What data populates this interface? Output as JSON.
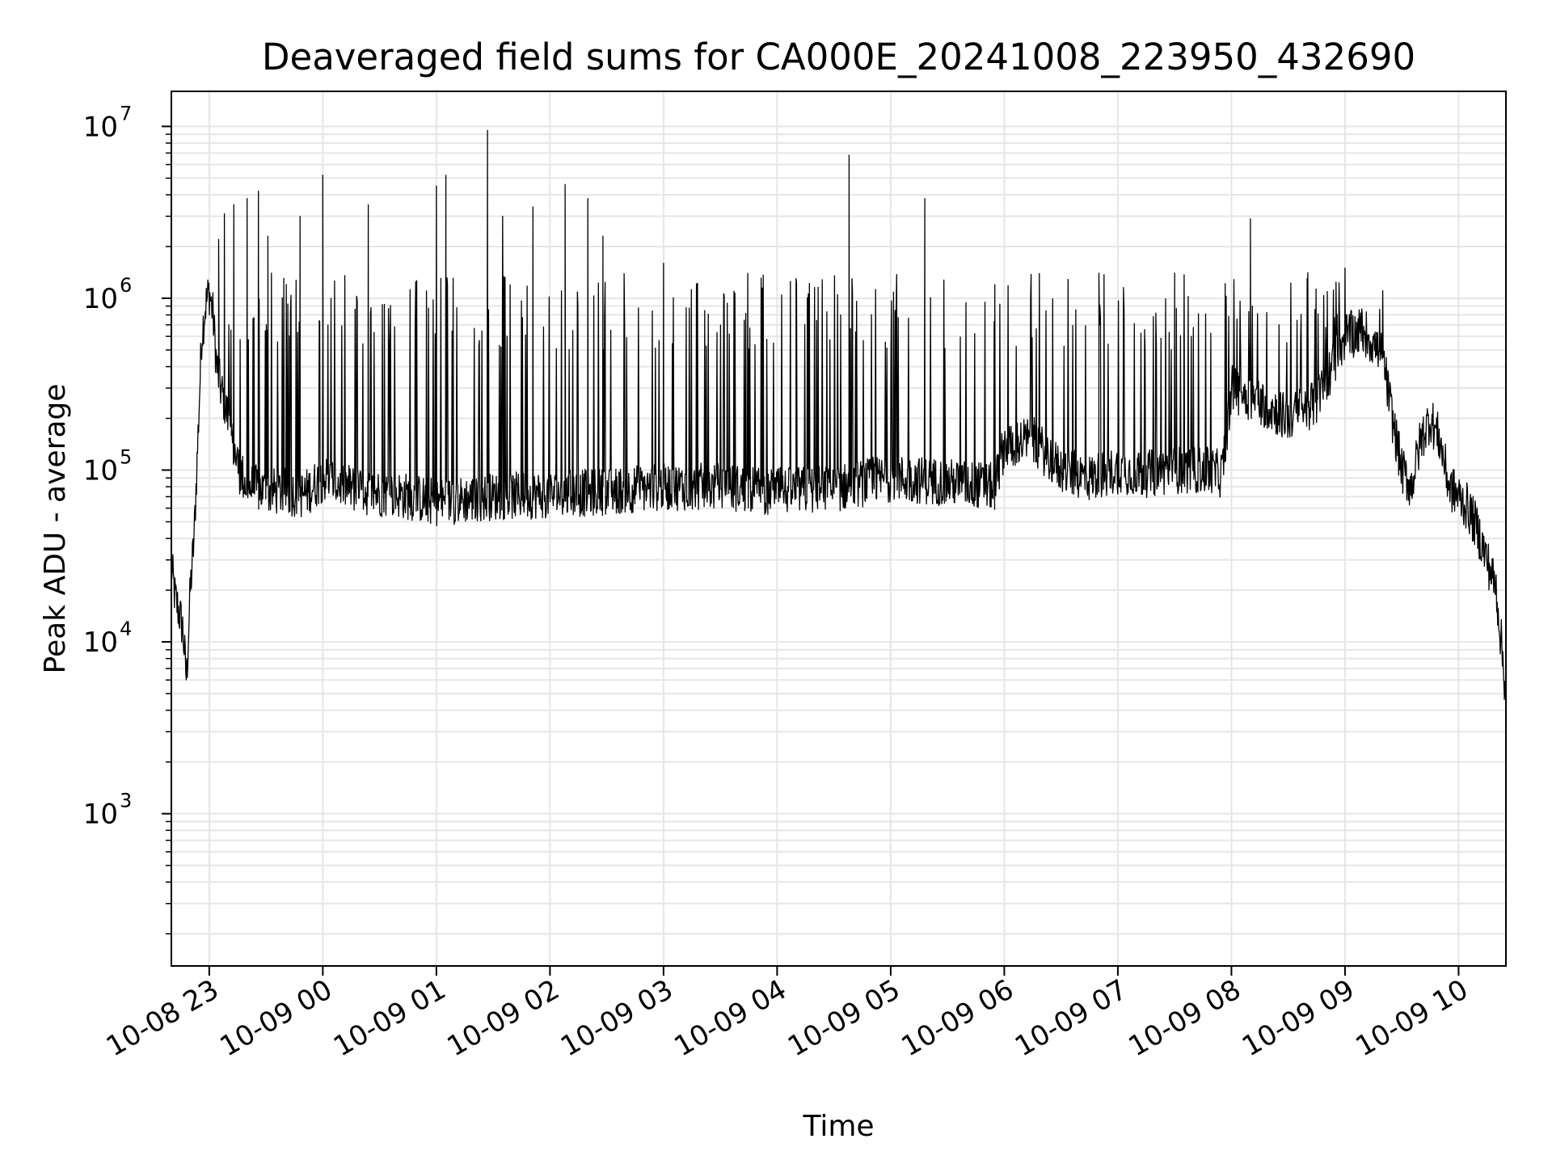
{
  "chart_data": {
    "type": "line",
    "title": "Deaveraged field sums for CA000E_20241008_223950_432690",
    "xlabel": "Time",
    "ylabel": "Peak ADU - average",
    "yscale": "log",
    "ylim": [
      130,
      16000000
    ],
    "xlim": [
      "2024-10-08 22:40",
      "2024-10-09 10:25"
    ],
    "grid": true,
    "line_color": "#000000",
    "grid_color": "#e6e6e6",
    "x_ticks": [
      {
        "time": "2024-10-08 23:00",
        "label": "10-08 23"
      },
      {
        "time": "2024-10-09 00:00",
        "label": "10-09 00"
      },
      {
        "time": "2024-10-09 01:00",
        "label": "10-09 01"
      },
      {
        "time": "2024-10-09 02:00",
        "label": "10-09 02"
      },
      {
        "time": "2024-10-09 03:00",
        "label": "10-09 03"
      },
      {
        "time": "2024-10-09 04:00",
        "label": "10-09 04"
      },
      {
        "time": "2024-10-09 05:00",
        "label": "10-09 05"
      },
      {
        "time": "2024-10-09 06:00",
        "label": "10-09 06"
      },
      {
        "time": "2024-10-09 07:00",
        "label": "10-09 07"
      },
      {
        "time": "2024-10-09 08:00",
        "label": "10-09 08"
      },
      {
        "time": "2024-10-09 09:00",
        "label": "10-09 09"
      },
      {
        "time": "2024-10-09 10:00",
        "label": "10-09 10"
      }
    ],
    "y_ticks": [
      {
        "value": 1000,
        "base": "10",
        "exp": "3"
      },
      {
        "value": 10000,
        "base": "10",
        "exp": "4"
      },
      {
        "value": 100000,
        "base": "10",
        "exp": "5"
      },
      {
        "value": 1000000,
        "base": "10",
        "exp": "6"
      },
      {
        "value": 10000000,
        "base": "10",
        "exp": "7"
      }
    ],
    "series": [
      {
        "x": [
          "2024-10-08 22:40",
          "2024-10-08 22:42",
          "2024-10-08 22:44",
          "2024-10-08 22:46",
          "2024-10-08 22:48",
          "2024-10-08 22:50",
          "2024-10-08 22:52",
          "2024-10-08 22:54",
          "2024-10-08 22:56",
          "2024-10-08 22:58",
          "2024-10-08 23:00",
          "2024-10-08 23:02",
          "2024-10-08 23:04",
          "2024-10-08 23:06",
          "2024-10-08 23:08",
          "2024-10-08 23:10",
          "2024-10-08 23:12",
          "2024-10-08 23:14",
          "2024-10-08 23:16",
          "2024-10-08 23:18",
          "2024-10-08 23:20",
          "2024-10-08 23:25",
          "2024-10-08 23:30",
          "2024-10-08 23:40",
          "2024-10-08 23:50",
          "2024-10-09 00:00",
          "2024-10-09 00:20",
          "2024-10-09 00:40",
          "2024-10-09 01:00",
          "2024-10-09 01:30",
          "2024-10-09 02:00",
          "2024-10-09 02:30",
          "2024-10-09 03:00",
          "2024-10-09 03:30",
          "2024-10-09 04:00",
          "2024-10-09 04:30",
          "2024-10-09 05:00",
          "2024-10-09 05:30",
          "2024-10-09 05:55",
          "2024-10-09 06:00",
          "2024-10-09 06:15",
          "2024-10-09 06:30",
          "2024-10-09 06:45",
          "2024-10-09 07:00",
          "2024-10-09 07:15",
          "2024-10-09 07:30",
          "2024-10-09 07:45",
          "2024-10-09 07:55",
          "2024-10-09 08:00",
          "2024-10-09 08:15",
          "2024-10-09 08:30",
          "2024-10-09 08:45",
          "2024-10-09 09:00",
          "2024-10-09 09:10",
          "2024-10-09 09:20",
          "2024-10-09 09:25",
          "2024-10-09 09:30",
          "2024-10-09 09:35",
          "2024-10-09 09:40",
          "2024-10-09 09:45",
          "2024-10-09 09:50",
          "2024-10-09 09:55",
          "2024-10-09 10:00",
          "2024-10-09 10:05",
          "2024-10-09 10:10",
          "2024-10-09 10:15",
          "2024-10-09 10:20",
          "2024-10-09 10:25"
        ],
        "values": [
          28000,
          18000,
          15000,
          12000,
          6000,
          20000,
          40000,
          150000,
          600000,
          900000,
          1100000,
          800000,
          400000,
          300000,
          250000,
          200000,
          150000,
          120000,
          100000,
          90000,
          80000,
          78000,
          75000,
          75000,
          72000,
          90000,
          75000,
          72000,
          65000,
          70000,
          72000,
          75000,
          80000,
          80000,
          75000,
          78000,
          90000,
          85000,
          80000,
          140000,
          150000,
          100000,
          90000,
          100000,
          95000,
          100000,
          100000,
          95000,
          300000,
          250000,
          200000,
          250000,
          600000,
          650000,
          450000,
          200000,
          100000,
          80000,
          150000,
          200000,
          150000,
          80000,
          70000,
          60000,
          45000,
          30000,
          20000,
          5000
        ]
      }
    ],
    "spikes": [
      {
        "time": "2024-10-08 23:05",
        "value": 2200000
      },
      {
        "time": "2024-10-08 23:08",
        "value": 3100000
      },
      {
        "time": "2024-10-08 23:13",
        "value": 3500000
      },
      {
        "time": "2024-10-08 23:20",
        "value": 3800000
      },
      {
        "time": "2024-10-08 23:26",
        "value": 4200000
      },
      {
        "time": "2024-10-08 23:31",
        "value": 2300000
      },
      {
        "time": "2024-10-08 23:48",
        "value": 3000000
      },
      {
        "time": "2024-10-09 00:00",
        "value": 5200000
      },
      {
        "time": "2024-10-09 00:24",
        "value": 3500000
      },
      {
        "time": "2024-10-09 01:00",
        "value": 4500000
      },
      {
        "time": "2024-10-09 01:05",
        "value": 5200000
      },
      {
        "time": "2024-10-09 01:27",
        "value": 9500000
      },
      {
        "time": "2024-10-09 01:35",
        "value": 3000000
      },
      {
        "time": "2024-10-09 01:51",
        "value": 3400000
      },
      {
        "time": "2024-10-09 02:08",
        "value": 4600000
      },
      {
        "time": "2024-10-09 02:20",
        "value": 3800000
      },
      {
        "time": "2024-10-09 02:28",
        "value": 2300000
      },
      {
        "time": "2024-10-09 03:00",
        "value": 1600000
      },
      {
        "time": "2024-10-09 04:10",
        "value": 1300000
      },
      {
        "time": "2024-10-09 04:38",
        "value": 6800000
      },
      {
        "time": "2024-10-09 05:18",
        "value": 3800000
      },
      {
        "time": "2024-10-09 05:55",
        "value": 1200000
      },
      {
        "time": "2024-10-09 06:50",
        "value": 1400000
      },
      {
        "time": "2024-10-09 07:30",
        "value": 1400000
      },
      {
        "time": "2024-10-09 08:10",
        "value": 2900000
      },
      {
        "time": "2024-10-09 08:40",
        "value": 1300000
      },
      {
        "time": "2024-10-09 09:00",
        "value": 1500000
      }
    ]
  }
}
